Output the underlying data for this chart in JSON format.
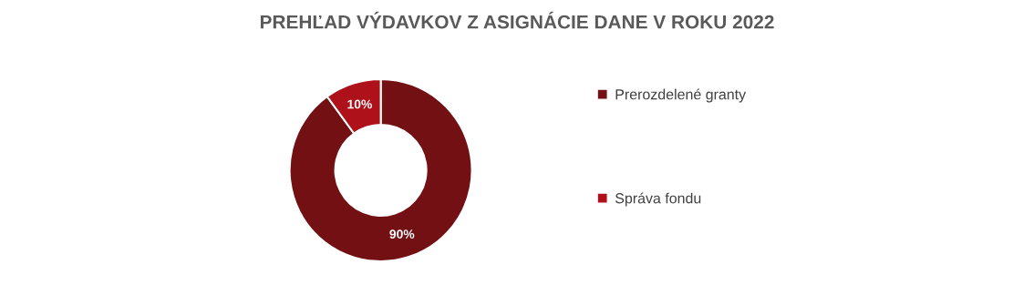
{
  "chart_data": {
    "type": "donut",
    "title": "PREHĽAD VÝDAVKOV Z ASIGNÁCIE DANE V ROKU 2022",
    "categories": [
      "Prerozdelené granty",
      "Správa fondu"
    ],
    "values": [
      90,
      10
    ],
    "colors": [
      "#731013",
      "#ae1119"
    ],
    "value_labels": [
      "90%",
      "10%"
    ],
    "legend": "right"
  }
}
